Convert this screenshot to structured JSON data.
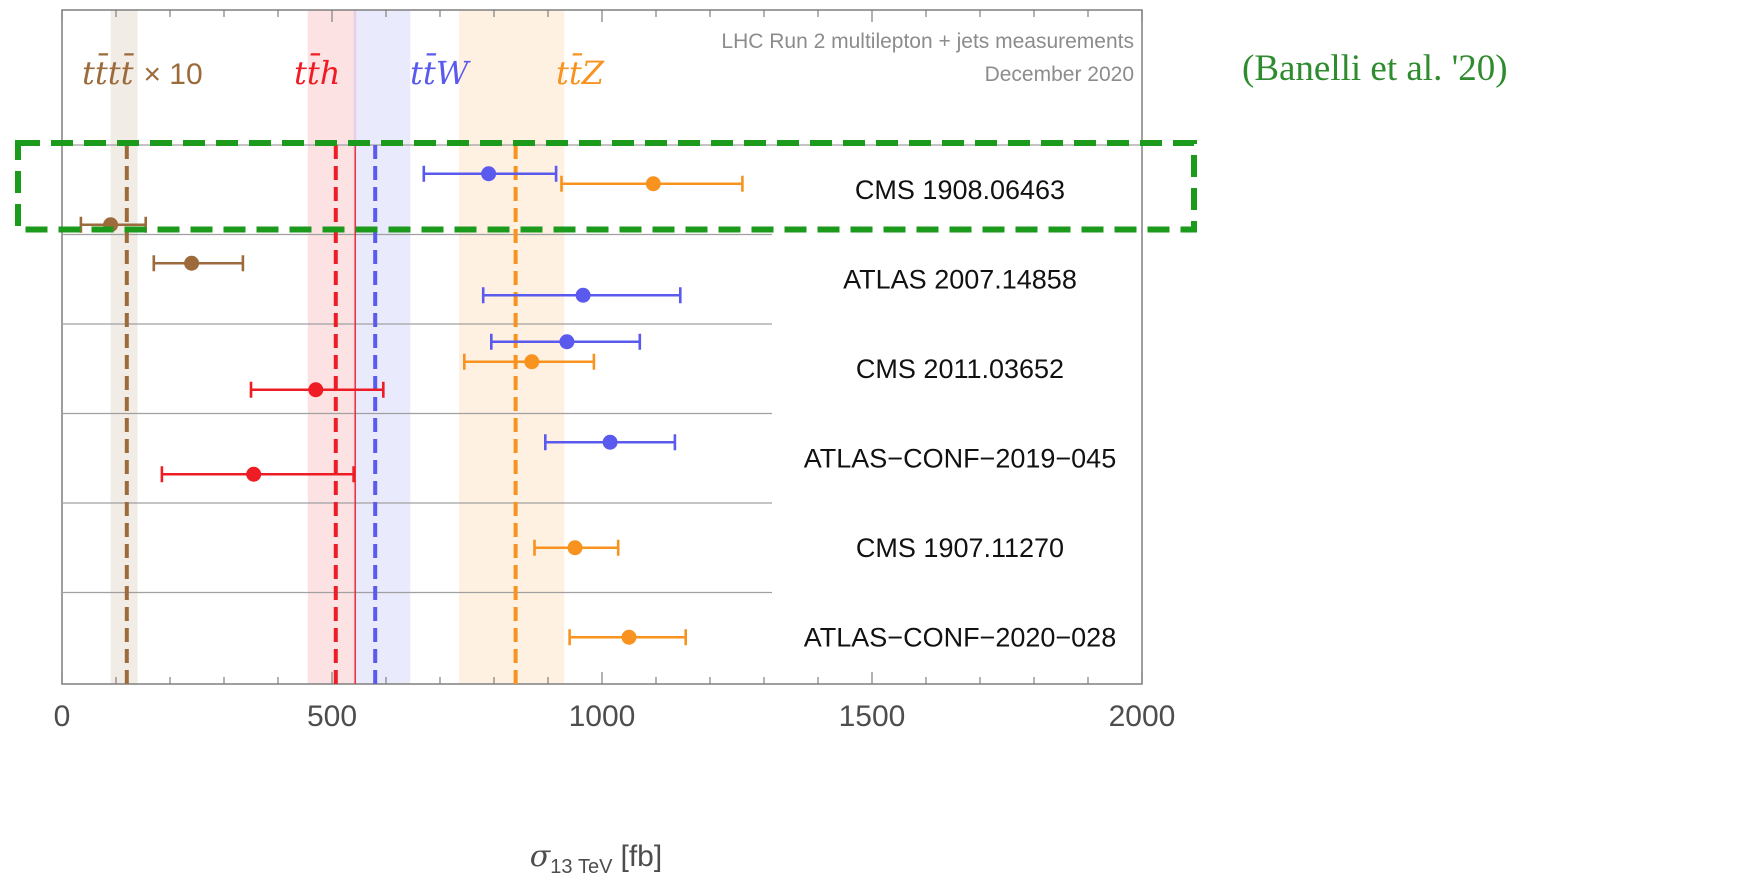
{
  "chart_data": {
    "type": "scatter",
    "title": "LHC Run 2 multilepton + jets measurements",
    "subtitle": "December 2020",
    "citation": "(Banelli et al. '20)",
    "xlabel_symbol": "σ",
    "xlabel_sub": "13 TeV",
    "xlabel_unit": "[fb]",
    "xlim": [
      0,
      2000
    ],
    "x_ticks": [
      "0",
      "500",
      "1000",
      "1500",
      "2000"
    ],
    "x_tick_values": [
      0,
      500,
      1000,
      1500,
      2000
    ],
    "legend_placement": "top-left",
    "processes": [
      {
        "key": "tttt",
        "label": "tt̄tt̄",
        "suffix": "× 10",
        "color": "#9c6a3b"
      },
      {
        "key": "tth",
        "label": "tt̄h",
        "suffix": "",
        "color": "#ee1c24"
      },
      {
        "key": "ttw",
        "label": "tt̄W",
        "suffix": "",
        "color": "#5a5aee"
      },
      {
        "key": "ttz",
        "label": "tt̄Z",
        "suffix": "",
        "color": "#f7931e"
      }
    ],
    "predictions": [
      {
        "key": "tttt",
        "value": 120,
        "band": [
          90,
          140
        ]
      },
      {
        "key": "tth",
        "value": 507,
        "band": [
          455,
          545
        ]
      },
      {
        "key": "ttw",
        "value": 580,
        "band": [
          540,
          645
        ]
      },
      {
        "key": "ttz",
        "value": 840,
        "band": [
          735,
          930
        ]
      }
    ],
    "reference_line": {
      "value": 543,
      "color": "#ee1c24"
    },
    "experiments": [
      {
        "name": "CMS 1908.06463",
        "highlight": true,
        "measurements": [
          {
            "key": "tttt",
            "value": 90,
            "low": 35,
            "high": 155
          },
          {
            "key": "ttw",
            "value": 790,
            "low": 670,
            "high": 915
          },
          {
            "key": "ttz",
            "value": 1095,
            "low": 925,
            "high": 1260
          }
        ]
      },
      {
        "name": "ATLAS 2007.14858",
        "highlight": false,
        "measurements": [
          {
            "key": "tttt",
            "value": 240,
            "low": 170,
            "high": 335
          },
          {
            "key": "ttw",
            "value": 965,
            "low": 780,
            "high": 1145
          }
        ]
      },
      {
        "name": "CMS 2011.03652",
        "highlight": false,
        "measurements": [
          {
            "key": "ttw",
            "value": 935,
            "low": 795,
            "high": 1070
          },
          {
            "key": "ttz",
            "value": 870,
            "low": 745,
            "high": 985
          },
          {
            "key": "tth",
            "value": 470,
            "low": 350,
            "high": 595
          }
        ]
      },
      {
        "name": "ATLAS−CONF−2019−045",
        "highlight": false,
        "measurements": [
          {
            "key": "ttw",
            "value": 1015,
            "low": 895,
            "high": 1135
          },
          {
            "key": "tth",
            "value": 355,
            "low": 185,
            "high": 540
          }
        ]
      },
      {
        "name": "CMS 1907.11270",
        "highlight": false,
        "measurements": [
          {
            "key": "ttz",
            "value": 950,
            "low": 875,
            "high": 1030
          }
        ]
      },
      {
        "name": "ATLAS−CONF−2020−028",
        "highlight": false,
        "measurements": [
          {
            "key": "ttz",
            "value": 1050,
            "low": 940,
            "high": 1155
          }
        ]
      }
    ],
    "colors": {
      "frame": "#7f7f7f",
      "separator": "#a0a0a0",
      "highlight_box": "#1c9a1c",
      "title_text": "#8c8c8c",
      "axis_text": "#4d4d4d",
      "citation_text": "#2e8b2e"
    }
  }
}
